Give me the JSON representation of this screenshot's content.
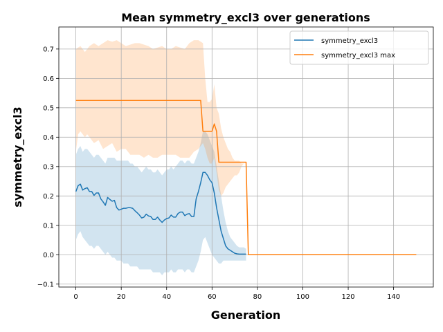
{
  "chart_data": {
    "type": "line",
    "title": "Mean symmetry_excl3 over generations",
    "xlabel": "Generation",
    "ylabel": "symmetry_excl3",
    "xlim": [
      -7.5,
      157.5
    ],
    "ylim": [
      -0.11,
      0.775
    ],
    "xticks": [
      0,
      20,
      40,
      60,
      80,
      100,
      120,
      140
    ],
    "yticks": [
      -0.1,
      0.0,
      0.1,
      0.2,
      0.3,
      0.4,
      0.5,
      0.6,
      0.7
    ],
    "ytick_labels": [
      "−0.1",
      "0.0",
      "0.1",
      "0.2",
      "0.3",
      "0.4",
      "0.5",
      "0.6",
      "0.7"
    ],
    "grid": true,
    "legend_position": "top-right",
    "series": [
      {
        "name": "symmetry_excl3",
        "color": "#1f77b4",
        "band_color": "#1f77b4",
        "band_opacity": 0.2,
        "x": [
          0,
          1,
          2,
          3,
          4,
          5,
          6,
          7,
          8,
          9,
          10,
          11,
          12,
          13,
          14,
          15,
          16,
          17,
          18,
          19,
          20,
          21,
          22,
          23,
          24,
          25,
          26,
          27,
          28,
          29,
          30,
          31,
          32,
          33,
          34,
          35,
          36,
          37,
          38,
          39,
          40,
          41,
          42,
          43,
          44,
          45,
          46,
          47,
          48,
          49,
          50,
          51,
          52,
          53,
          54,
          55,
          56,
          57,
          58,
          59,
          60,
          61,
          62,
          63,
          64,
          65,
          66,
          67,
          68,
          69,
          70,
          71,
          72,
          73,
          74,
          75
        ],
        "values": [
          0.215,
          0.235,
          0.24,
          0.22,
          0.225,
          0.228,
          0.215,
          0.215,
          0.202,
          0.21,
          0.21,
          0.19,
          0.18,
          0.168,
          0.195,
          0.188,
          0.182,
          0.185,
          0.16,
          0.152,
          0.155,
          0.158,
          0.158,
          0.16,
          0.16,
          0.158,
          0.15,
          0.143,
          0.135,
          0.125,
          0.128,
          0.138,
          0.132,
          0.13,
          0.12,
          0.12,
          0.128,
          0.118,
          0.11,
          0.118,
          0.123,
          0.125,
          0.135,
          0.128,
          0.128,
          0.14,
          0.145,
          0.145,
          0.133,
          0.138,
          0.14,
          0.13,
          0.13,
          0.19,
          0.215,
          0.245,
          0.28,
          0.28,
          0.27,
          0.255,
          0.245,
          0.21,
          0.16,
          0.12,
          0.08,
          0.055,
          0.03,
          0.02,
          0.015,
          0.01,
          0.005,
          0.003,
          0.002,
          0.002,
          0.002,
          0.002
        ],
        "band_upper": [
          0.34,
          0.36,
          0.37,
          0.35,
          0.36,
          0.36,
          0.35,
          0.34,
          0.33,
          0.34,
          0.34,
          0.33,
          0.32,
          0.31,
          0.33,
          0.33,
          0.33,
          0.33,
          0.32,
          0.32,
          0.32,
          0.32,
          0.32,
          0.32,
          0.31,
          0.31,
          0.3,
          0.3,
          0.29,
          0.28,
          0.29,
          0.3,
          0.29,
          0.29,
          0.28,
          0.28,
          0.29,
          0.28,
          0.27,
          0.28,
          0.29,
          0.29,
          0.3,
          0.29,
          0.3,
          0.31,
          0.32,
          0.32,
          0.31,
          0.32,
          0.32,
          0.31,
          0.31,
          0.33,
          0.35,
          0.38,
          0.42,
          0.42,
          0.41,
          0.39,
          0.37,
          0.35,
          0.3,
          0.25,
          0.2,
          0.15,
          0.11,
          0.08,
          0.06,
          0.05,
          0.04,
          0.03,
          0.025,
          0.025,
          0.025,
          0.02
        ],
        "band_lower": [
          0.05,
          0.07,
          0.08,
          0.06,
          0.05,
          0.04,
          0.03,
          0.03,
          0.02,
          0.03,
          0.03,
          0.02,
          0.01,
          0.0,
          0.01,
          0.0,
          -0.01,
          -0.01,
          -0.02,
          -0.02,
          -0.02,
          -0.03,
          -0.03,
          -0.03,
          -0.04,
          -0.04,
          -0.04,
          -0.04,
          -0.05,
          -0.05,
          -0.05,
          -0.05,
          -0.05,
          -0.05,
          -0.06,
          -0.06,
          -0.06,
          -0.06,
          -0.07,
          -0.06,
          -0.06,
          -0.06,
          -0.05,
          -0.06,
          -0.06,
          -0.05,
          -0.05,
          -0.05,
          -0.06,
          -0.05,
          -0.05,
          -0.06,
          -0.06,
          -0.04,
          -0.02,
          0.01,
          0.05,
          0.06,
          0.04,
          0.02,
          0.0,
          -0.01,
          -0.02,
          -0.03,
          -0.03,
          -0.02,
          -0.02,
          -0.02,
          -0.02,
          -0.02,
          -0.02,
          -0.02,
          -0.02,
          -0.02,
          -0.02,
          -0.02
        ]
      },
      {
        "name": "symmetry_excl3 max",
        "color": "#ff7f0e",
        "band_color": "#ff7f0e",
        "band_opacity": 0.2,
        "x": [
          0,
          55,
          56,
          56.5,
          60,
          61,
          62,
          63,
          75,
          76,
          150
        ],
        "values": [
          0.525,
          0.525,
          0.42,
          0.42,
          0.42,
          0.445,
          0.42,
          0.315,
          0.315,
          0.0,
          0.0
        ],
        "band_x": [
          0,
          1,
          2,
          3,
          4,
          5,
          6,
          8,
          10,
          12,
          14,
          16,
          18,
          20,
          22,
          24,
          26,
          28,
          30,
          32,
          34,
          36,
          38,
          40,
          42,
          44,
          46,
          48,
          50,
          52,
          54,
          55,
          56,
          57,
          58,
          59,
          60,
          61,
          62,
          63,
          64,
          65,
          66,
          67,
          68,
          69,
          70,
          71,
          72,
          73,
          74,
          75
        ],
        "band_upper": [
          0.7,
          0.705,
          0.71,
          0.7,
          0.69,
          0.7,
          0.71,
          0.72,
          0.71,
          0.72,
          0.73,
          0.725,
          0.73,
          0.72,
          0.71,
          0.715,
          0.72,
          0.72,
          0.715,
          0.71,
          0.7,
          0.705,
          0.71,
          0.7,
          0.7,
          0.71,
          0.705,
          0.7,
          0.72,
          0.73,
          0.73,
          0.725,
          0.72,
          0.6,
          0.52,
          0.52,
          0.53,
          0.58,
          0.5,
          0.48,
          0.43,
          0.4,
          0.38,
          0.36,
          0.35,
          0.33,
          0.32,
          0.32,
          0.32,
          0.31,
          0.31,
          0.31
        ],
        "band_lower": [
          0.35,
          0.41,
          0.42,
          0.41,
          0.4,
          0.41,
          0.4,
          0.38,
          0.39,
          0.36,
          0.37,
          0.38,
          0.35,
          0.36,
          0.36,
          0.34,
          0.34,
          0.34,
          0.33,
          0.34,
          0.33,
          0.33,
          0.34,
          0.34,
          0.34,
          0.34,
          0.33,
          0.33,
          0.33,
          0.35,
          0.36,
          0.37,
          0.38,
          0.36,
          0.33,
          0.31,
          0.31,
          0.33,
          0.28,
          0.22,
          0.2,
          0.21,
          0.23,
          0.24,
          0.25,
          0.26,
          0.27,
          0.27,
          0.28,
          0.3,
          0.31,
          0.31
        ]
      }
    ]
  }
}
